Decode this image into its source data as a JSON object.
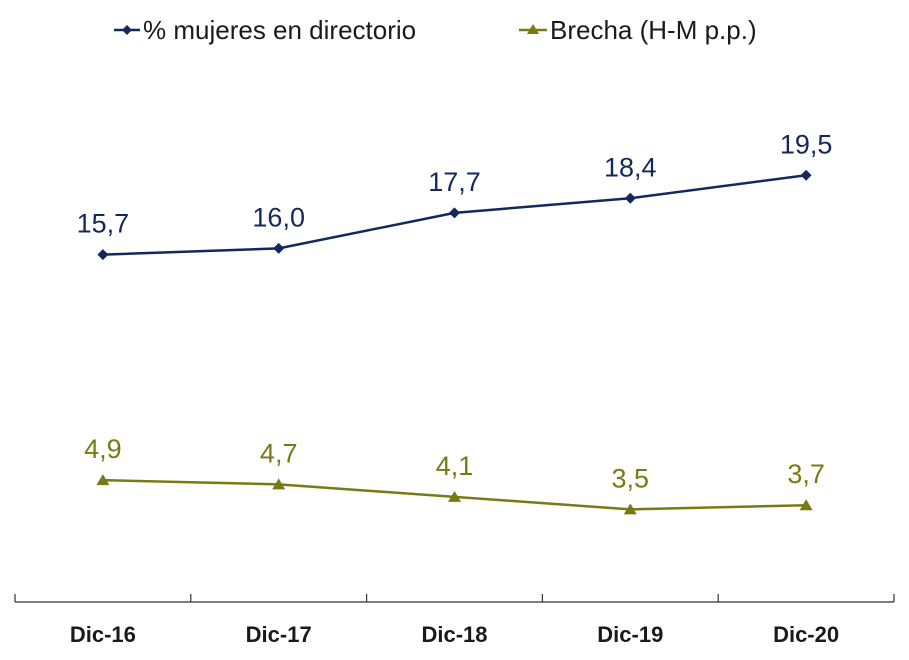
{
  "chart_data": {
    "type": "line",
    "title": "",
    "xlabel": "",
    "ylabel": "",
    "categories": [
      "Dic-16",
      "Dic-17",
      "Dic-18",
      "Dic-19",
      "Dic-20"
    ],
    "series": [
      {
        "name": "% mujeres en directorio",
        "values": [
          15.7,
          16.0,
          17.7,
          18.4,
          19.5
        ],
        "labels": [
          "15,7",
          "16,0",
          "17,7",
          "18,4",
          "19,5"
        ],
        "color": "#14285c",
        "marker": "diamond"
      },
      {
        "name": "Brecha (H-M p.p.)",
        "values": [
          4.9,
          4.7,
          4.1,
          3.5,
          3.7
        ],
        "labels": [
          "4,9",
          "4,7",
          "4,1",
          "3,5",
          "3,7"
        ],
        "color": "#7a7a14",
        "marker": "triangle"
      }
    ],
    "ylim": [
      -0.6,
      25.5
    ],
    "grid": false,
    "legend": "top"
  }
}
